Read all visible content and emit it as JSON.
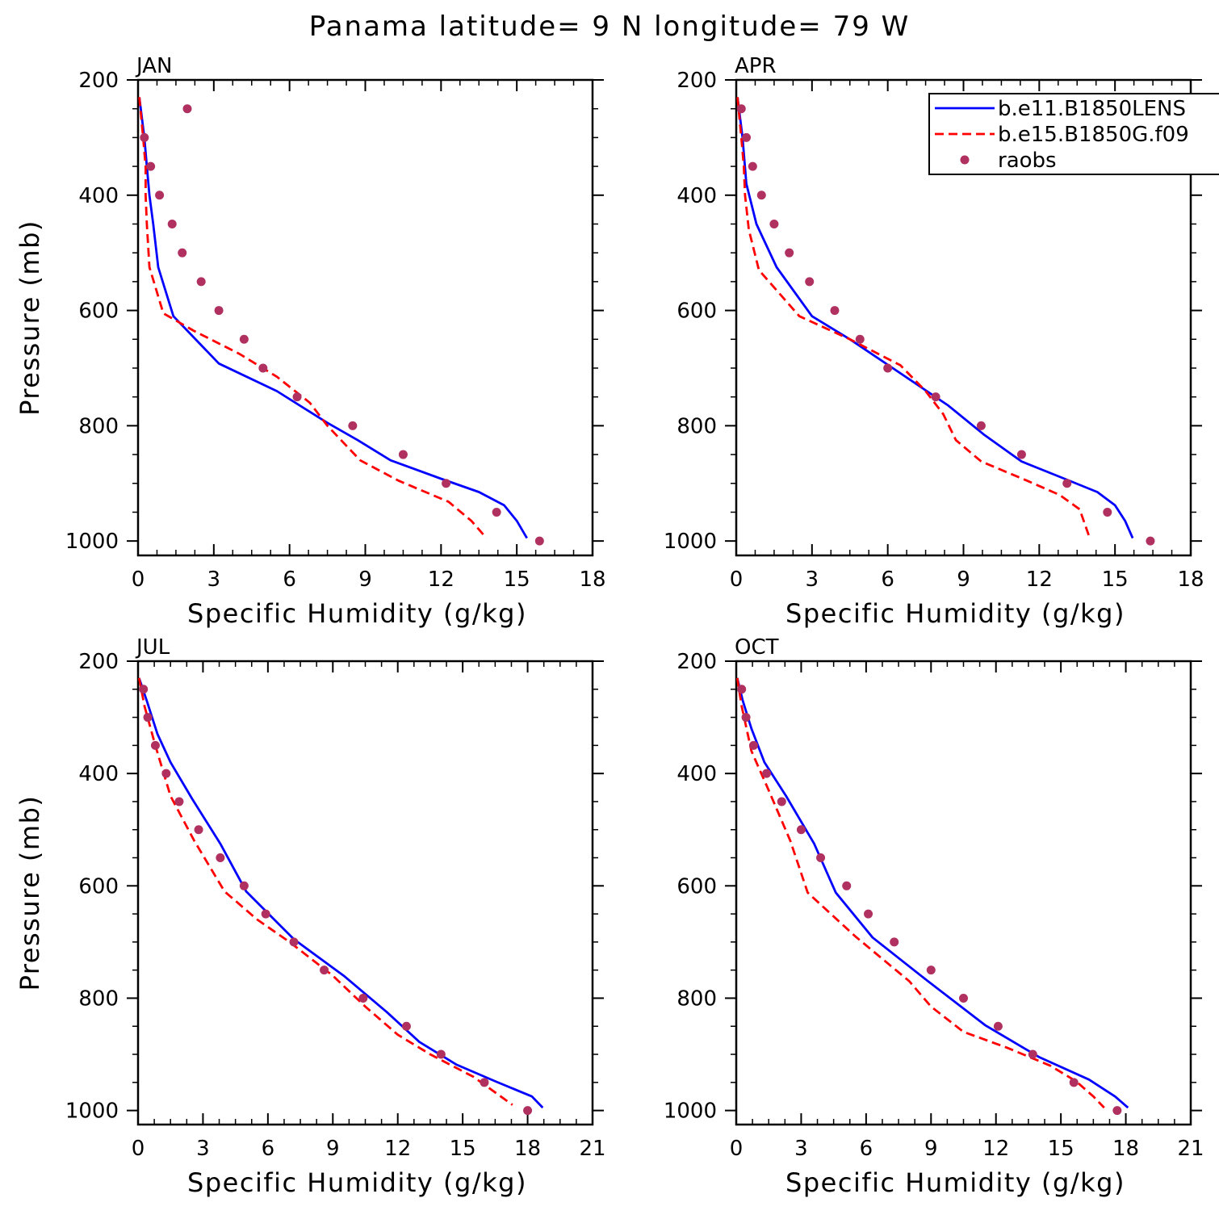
{
  "title": "Panama  latitude= 9 N longitude= 79 W",
  "colors": {
    "lens": "#0000ff",
    "g": "#ff0000",
    "raobs": "#b03060",
    "axes": "#000000",
    "background": "#ffffff"
  },
  "legend": {
    "placement": "top-right of APR panel",
    "entries": [
      "b.e11.B1850LENS",
      "b.e15.B1850G.f09",
      "raobs"
    ]
  },
  "chart_data": [
    {
      "type": "line",
      "panel_label": "JAN",
      "xlabel": "Specific Humidity (g/kg)",
      "ylabel": "Pressure (mb)",
      "xlim": [
        0,
        18
      ],
      "ylim": [
        200,
        1025
      ],
      "y_inverted": true,
      "xticks": [
        0,
        3,
        6,
        9,
        12,
        15,
        18
      ],
      "yticks": [
        200,
        400,
        600,
        800,
        1000
      ],
      "series": [
        {
          "name": "b.e11.B1850LENS",
          "style": "solid",
          "points": [
            [
              0.05,
              230
            ],
            [
              0.25,
              300
            ],
            [
              0.35,
              350
            ],
            [
              0.45,
              400
            ],
            [
              0.6,
              450
            ],
            [
              0.8,
              525
            ],
            [
              1.4,
              610
            ],
            [
              3.2,
              692
            ],
            [
              5.5,
              740
            ],
            [
              7.5,
              795
            ],
            [
              8.7,
              825
            ],
            [
              10.0,
              860
            ],
            [
              12.0,
              892
            ],
            [
              13.5,
              915
            ],
            [
              14.5,
              938
            ],
            [
              15.0,
              965
            ],
            [
              15.4,
              995
            ]
          ]
        },
        {
          "name": "b.e15.B1850G.f09",
          "style": "dashed",
          "points": [
            [
              0.05,
              230
            ],
            [
              0.2,
              300
            ],
            [
              0.3,
              350
            ],
            [
              0.3,
              400
            ],
            [
              0.35,
              450
            ],
            [
              0.45,
              525
            ],
            [
              1.0,
              605
            ],
            [
              2.2,
              635
            ],
            [
              4.0,
              675
            ],
            [
              5.5,
              715
            ],
            [
              6.8,
              760
            ],
            [
              7.5,
              800
            ],
            [
              8.8,
              860
            ],
            [
              10.3,
              895
            ],
            [
              12.3,
              932
            ],
            [
              13.2,
              965
            ],
            [
              13.8,
              995
            ]
          ]
        },
        {
          "name": "raobs",
          "style": "markers",
          "points": [
            [
              1.95,
              250
            ],
            [
              0.25,
              300
            ],
            [
              0.5,
              350
            ],
            [
              0.85,
              400
            ],
            [
              1.35,
              450
            ],
            [
              1.75,
              500
            ],
            [
              2.5,
              550
            ],
            [
              3.2,
              600
            ],
            [
              4.2,
              650
            ],
            [
              4.95,
              700
            ],
            [
              6.3,
              750
            ],
            [
              8.5,
              800
            ],
            [
              10.5,
              850
            ],
            [
              12.2,
              900
            ],
            [
              14.2,
              950
            ],
            [
              15.9,
              1000
            ]
          ]
        }
      ]
    },
    {
      "type": "line",
      "panel_label": "APR",
      "xlabel": "Specific Humidity (g/kg)",
      "ylabel": "",
      "xlim": [
        0,
        18
      ],
      "ylim": [
        200,
        1025
      ],
      "y_inverted": true,
      "xticks": [
        0,
        3,
        6,
        9,
        12,
        15,
        18
      ],
      "yticks": [
        200,
        400,
        600,
        800,
        1000
      ],
      "series": [
        {
          "name": "b.e11.B1850LENS",
          "style": "solid",
          "points": [
            [
              0.05,
              230
            ],
            [
              0.25,
              300
            ],
            [
              0.4,
              380
            ],
            [
              0.8,
              450
            ],
            [
              1.6,
              525
            ],
            [
              3.0,
              610
            ],
            [
              4.5,
              650
            ],
            [
              6.2,
              700
            ],
            [
              8.4,
              765
            ],
            [
              9.8,
              815
            ],
            [
              11.3,
              862
            ],
            [
              13.0,
              892
            ],
            [
              14.3,
              915
            ],
            [
              15.0,
              938
            ],
            [
              15.4,
              965
            ],
            [
              15.7,
              995
            ]
          ]
        },
        {
          "name": "b.e15.B1850G.f09",
          "style": "dashed",
          "points": [
            [
              0.05,
              230
            ],
            [
              0.2,
              300
            ],
            [
              0.3,
              350
            ],
            [
              0.35,
              400
            ],
            [
              0.5,
              460
            ],
            [
              0.9,
              530
            ],
            [
              2.5,
              610
            ],
            [
              4.5,
              650
            ],
            [
              6.5,
              695
            ],
            [
              7.5,
              740
            ],
            [
              8.2,
              780
            ],
            [
              8.7,
              825
            ],
            [
              9.7,
              862
            ],
            [
              11.5,
              895
            ],
            [
              12.8,
              920
            ],
            [
              13.6,
              945
            ],
            [
              14.0,
              995
            ]
          ]
        },
        {
          "name": "raobs",
          "style": "markers",
          "points": [
            [
              0.2,
              250
            ],
            [
              0.4,
              300
            ],
            [
              0.65,
              350
            ],
            [
              1.0,
              400
            ],
            [
              1.5,
              450
            ],
            [
              2.1,
              500
            ],
            [
              2.9,
              550
            ],
            [
              3.9,
              600
            ],
            [
              4.9,
              650
            ],
            [
              6.0,
              700
            ],
            [
              7.9,
              750
            ],
            [
              9.7,
              800
            ],
            [
              11.3,
              850
            ],
            [
              13.1,
              900
            ],
            [
              14.7,
              950
            ],
            [
              16.4,
              1000
            ]
          ]
        }
      ]
    },
    {
      "type": "line",
      "panel_label": "JUL",
      "xlabel": "Specific Humidity (g/kg)",
      "ylabel": "Pressure (mb)",
      "xlim": [
        0,
        21
      ],
      "ylim": [
        200,
        1025
      ],
      "y_inverted": true,
      "xticks": [
        0,
        3,
        6,
        9,
        12,
        15,
        18,
        21
      ],
      "yticks": [
        200,
        400,
        600,
        800,
        1000
      ],
      "series": [
        {
          "name": "b.e11.B1850LENS",
          "style": "solid",
          "points": [
            [
              0.05,
              230
            ],
            [
              0.4,
              270
            ],
            [
              0.9,
              330
            ],
            [
              1.5,
              380
            ],
            [
              2.5,
              445
            ],
            [
              3.8,
              525
            ],
            [
              5.0,
              610
            ],
            [
              7.2,
              695
            ],
            [
              9.5,
              760
            ],
            [
              11.5,
              825
            ],
            [
              13.0,
              878
            ],
            [
              14.7,
              918
            ],
            [
              16.5,
              948
            ],
            [
              18.2,
              975
            ],
            [
              18.7,
              995
            ]
          ]
        },
        {
          "name": "b.e15.B1850G.f09",
          "style": "dashed",
          "points": [
            [
              0.05,
              230
            ],
            [
              0.3,
              280
            ],
            [
              0.8,
              350
            ],
            [
              1.5,
              440
            ],
            [
              2.6,
              520
            ],
            [
              4.0,
              610
            ],
            [
              5.5,
              660
            ],
            [
              7.0,
              700
            ],
            [
              9.0,
              760
            ],
            [
              10.5,
              815
            ],
            [
              12.0,
              865
            ],
            [
              13.5,
              900
            ],
            [
              15.5,
              940
            ],
            [
              17.3,
              990
            ]
          ]
        },
        {
          "name": "raobs",
          "style": "markers",
          "points": [
            [
              0.25,
              250
            ],
            [
              0.45,
              300
            ],
            [
              0.8,
              350
            ],
            [
              1.3,
              400
            ],
            [
              1.9,
              450
            ],
            [
              2.8,
              500
            ],
            [
              3.8,
              550
            ],
            [
              4.9,
              600
            ],
            [
              5.9,
              650
            ],
            [
              7.2,
              700
            ],
            [
              8.6,
              750
            ],
            [
              10.4,
              800
            ],
            [
              12.4,
              850
            ],
            [
              14.0,
              900
            ],
            [
              16.0,
              950
            ],
            [
              18.0,
              1000
            ]
          ]
        }
      ]
    },
    {
      "type": "line",
      "panel_label": "OCT",
      "xlabel": "Specific Humidity (g/kg)",
      "ylabel": "",
      "xlim": [
        0,
        21
      ],
      "ylim": [
        200,
        1025
      ],
      "y_inverted": true,
      "xticks": [
        0,
        3,
        6,
        9,
        12,
        15,
        18,
        21
      ],
      "yticks": [
        200,
        400,
        600,
        800,
        1000
      ],
      "series": [
        {
          "name": "b.e11.B1850LENS",
          "style": "solid",
          "points": [
            [
              0.05,
              230
            ],
            [
              0.3,
              270
            ],
            [
              0.7,
              320
            ],
            [
              1.3,
              380
            ],
            [
              2.3,
              440
            ],
            [
              3.6,
              525
            ],
            [
              4.6,
              612
            ],
            [
              6.3,
              692
            ],
            [
              8.8,
              768
            ],
            [
              11.5,
              848
            ],
            [
              14.0,
              905
            ],
            [
              16.3,
              945
            ],
            [
              17.5,
              975
            ],
            [
              18.1,
              995
            ]
          ]
        },
        {
          "name": "b.e15.B1850G.f09",
          "style": "dashed",
          "points": [
            [
              0.05,
              230
            ],
            [
              0.25,
              280
            ],
            [
              0.7,
              360
            ],
            [
              1.5,
              430
            ],
            [
              2.5,
              520
            ],
            [
              3.3,
              612
            ],
            [
              5.5,
              690
            ],
            [
              8.0,
              770
            ],
            [
              9.0,
              815
            ],
            [
              10.5,
              860
            ],
            [
              12.5,
              888
            ],
            [
              14.5,
              920
            ],
            [
              15.7,
              948
            ],
            [
              16.5,
              975
            ],
            [
              17.0,
              995
            ]
          ]
        },
        {
          "name": "raobs",
          "style": "markers",
          "points": [
            [
              0.25,
              250
            ],
            [
              0.45,
              300
            ],
            [
              0.8,
              350
            ],
            [
              1.4,
              400
            ],
            [
              2.1,
              450
            ],
            [
              3.0,
              500
            ],
            [
              3.9,
              550
            ],
            [
              5.1,
              600
            ],
            [
              6.1,
              650
            ],
            [
              7.3,
              700
            ],
            [
              9.0,
              750
            ],
            [
              10.5,
              800
            ],
            [
              12.1,
              850
            ],
            [
              13.7,
              900
            ],
            [
              15.6,
              950
            ],
            [
              17.6,
              1000
            ]
          ]
        }
      ]
    }
  ]
}
